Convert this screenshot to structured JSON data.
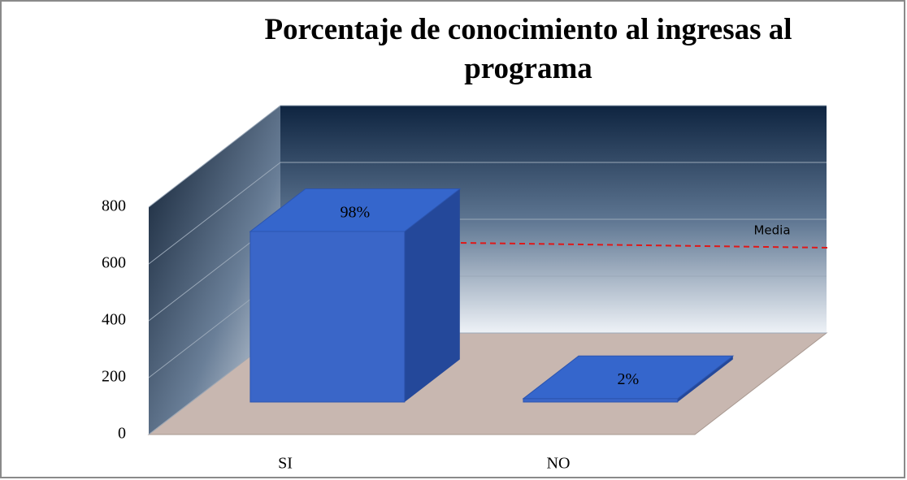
{
  "chart_data": {
    "type": "bar3d",
    "title": "Porcentaje de conocimiento al ingresas al programa",
    "categories": [
      "SI",
      "NO"
    ],
    "values": [
      600,
      12
    ],
    "percentages": [
      98,
      2
    ],
    "percentage_labels": [
      "98%",
      "2%"
    ],
    "color": "#3a66c8",
    "ylim": [
      0,
      800
    ],
    "yticks": [
      0,
      200,
      400,
      600,
      800
    ],
    "grid": true,
    "annotations": [
      {
        "text": "Media"
      }
    ]
  }
}
